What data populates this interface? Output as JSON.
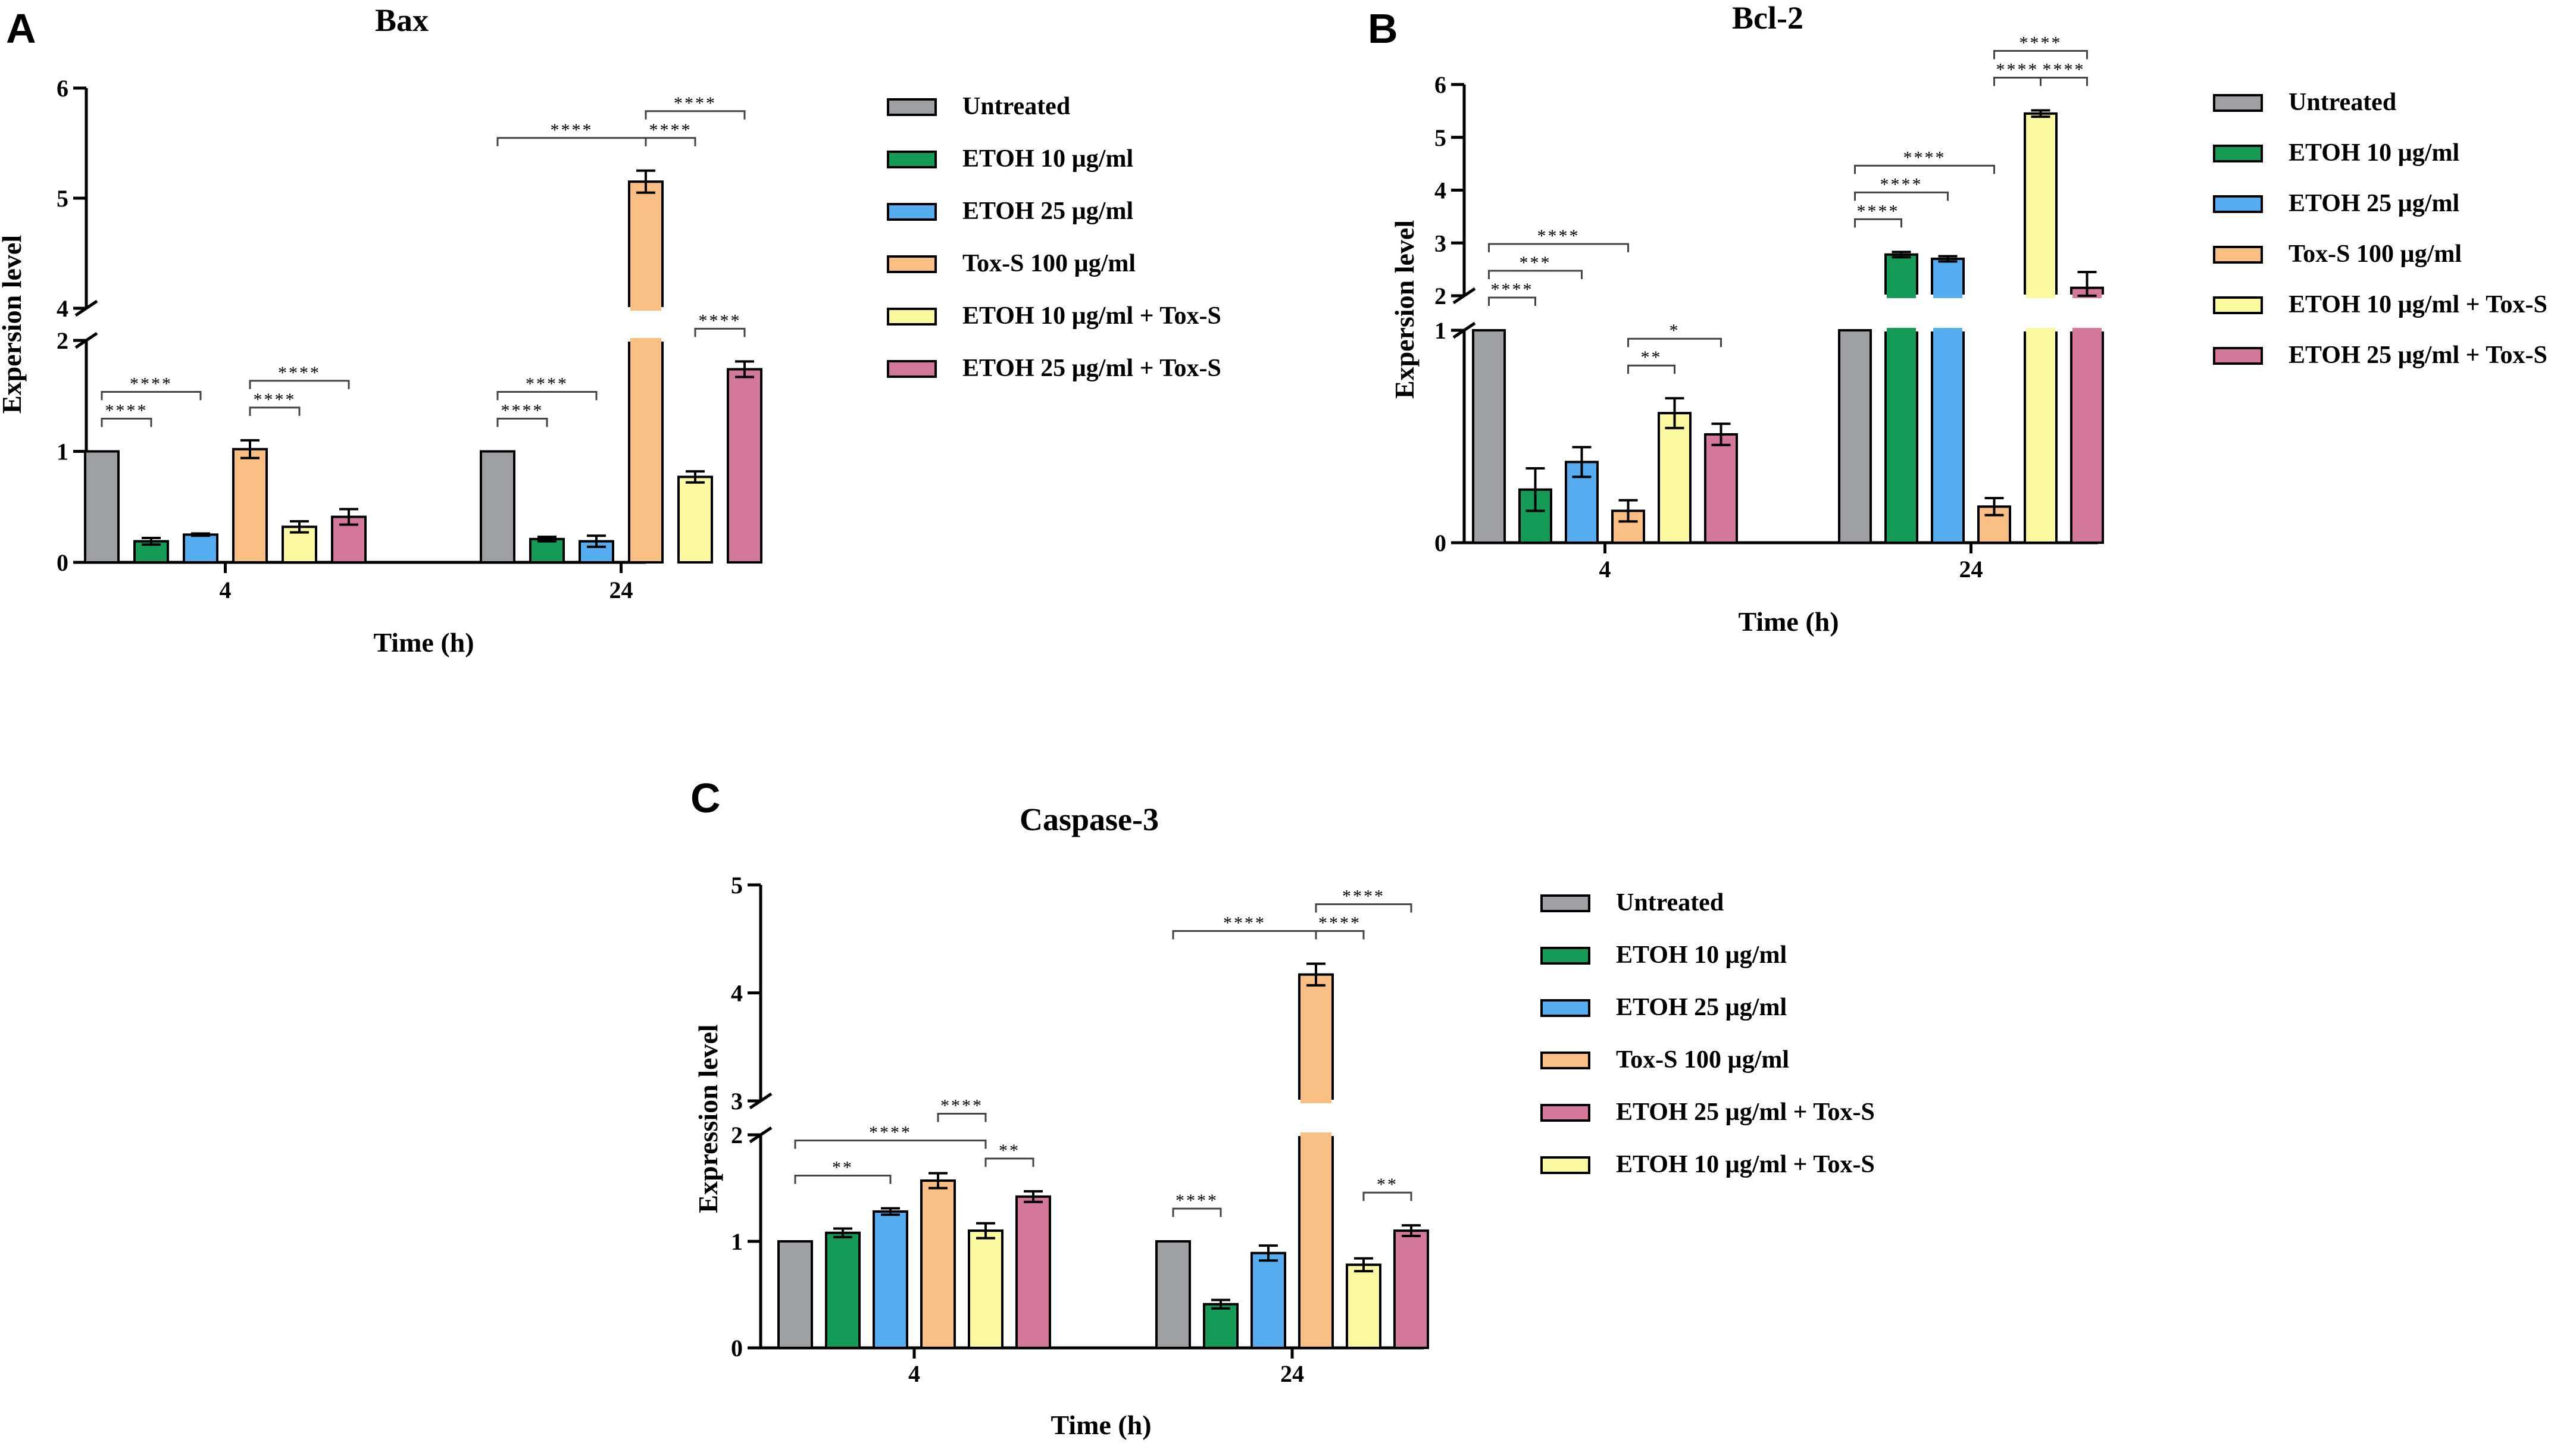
{
  "chart_data": [
    {
      "panel": "A",
      "type": "bar",
      "title": "Bax",
      "xlabel": "Time (h)",
      "ylabel": "Expersion level",
      "categories": [
        "4",
        "24"
      ],
      "y_ticks_lower": [
        "0",
        "1",
        "2"
      ],
      "y_ticks_upper": [
        "4",
        "5",
        "6"
      ],
      "ylim_lower": [
        0,
        2
      ],
      "ylim_upper": [
        4,
        6
      ],
      "series": [
        {
          "name": "Untreated",
          "color": "#9e9fa3",
          "values": [
            1.0,
            1.0
          ],
          "errors": [
            0,
            0
          ]
        },
        {
          "name": "ETOH 10 µg/ml",
          "color": "#149b55",
          "values": [
            0.19,
            0.21
          ],
          "errors": [
            0.03,
            0.02
          ]
        },
        {
          "name": "ETOH 25 µg/ml",
          "color": "#55acee",
          "values": [
            0.25,
            0.19
          ],
          "errors": [
            0.01,
            0.05
          ]
        },
        {
          "name": "Tox-S 100 µg/ml",
          "color": "#f9be82",
          "values": [
            1.02,
            5.15
          ],
          "errors": [
            0.08,
            0.1
          ]
        },
        {
          "name": "ETOH 10 µg/ml + Tox-S",
          "color": "#fbf99f",
          "values": [
            0.32,
            0.77
          ],
          "errors": [
            0.05,
            0.05
          ]
        },
        {
          "name": "ETOH 25 µg/ml + Tox-S",
          "color": "#d3789b",
          "values": [
            0.41,
            1.74
          ],
          "errors": [
            0.07,
            0.07
          ]
        }
      ],
      "significance": [
        {
          "group": 0,
          "from": 0,
          "to": 1,
          "label": "****"
        },
        {
          "group": 0,
          "from": 0,
          "to": 2,
          "label": "****"
        },
        {
          "group": 0,
          "from": 3,
          "to": 4,
          "label": "****"
        },
        {
          "group": 0,
          "from": 3,
          "to": 5,
          "label": "****"
        },
        {
          "group": 1,
          "from": 0,
          "to": 1,
          "label": "****"
        },
        {
          "group": 1,
          "from": 0,
          "to": 2,
          "label": "****"
        },
        {
          "group": 1,
          "from": 4,
          "to": 5,
          "label": "****"
        },
        {
          "group": 1,
          "from": 0,
          "to": 3,
          "label": "****"
        },
        {
          "group": 1,
          "from": 3,
          "to": 4,
          "label": "****"
        },
        {
          "group": 1,
          "from": 3,
          "to": 5,
          "label": "****"
        }
      ]
    },
    {
      "panel": "B",
      "type": "bar",
      "title": "Bcl-2",
      "xlabel": "Time (h)",
      "ylabel": "Expersion level",
      "categories": [
        "4",
        "24"
      ],
      "y_ticks_lower": [
        "0",
        "1"
      ],
      "y_ticks_upper": [
        "2",
        "3",
        "4",
        "5",
        "6"
      ],
      "ylim_lower": [
        0,
        1
      ],
      "ylim_upper": [
        2,
        6
      ],
      "series": [
        {
          "name": "Untreated",
          "color": "#9e9fa3",
          "values": [
            1.0,
            1.0
          ],
          "errors": [
            0,
            0
          ]
        },
        {
          "name": "ETOH 10 µg/ml",
          "color": "#149b55",
          "values": [
            0.25,
            2.78
          ],
          "errors": [
            0.1,
            0.05
          ]
        },
        {
          "name": "ETOH 25 µg/ml",
          "color": "#55acee",
          "values": [
            0.38,
            2.7
          ],
          "errors": [
            0.07,
            0.05
          ]
        },
        {
          "name": "Tox-S 100 µg/ml",
          "color": "#f9be82",
          "values": [
            0.15,
            0.17
          ],
          "errors": [
            0.05,
            0.04
          ]
        },
        {
          "name": "ETOH 10 µg/ml + Tox-S",
          "color": "#fbf99f",
          "values": [
            0.61,
            5.45
          ],
          "errors": [
            0.07,
            0.06
          ]
        },
        {
          "name": "ETOH 25 µg/ml + Tox-S",
          "color": "#d3789b",
          "values": [
            0.51,
            2.15
          ],
          "errors": [
            0.05,
            0.3
          ]
        }
      ],
      "significance": [
        {
          "group": 0,
          "from": 0,
          "to": 1,
          "label": "****"
        },
        {
          "group": 0,
          "from": 0,
          "to": 2,
          "label": "***"
        },
        {
          "group": 0,
          "from": 0,
          "to": 3,
          "label": "****"
        },
        {
          "group": 0,
          "from": 3,
          "to": 4,
          "label": "**"
        },
        {
          "group": 0,
          "from": 3,
          "to": 5,
          "label": "*"
        },
        {
          "group": 1,
          "from": 0,
          "to": 1,
          "label": "****"
        },
        {
          "group": 1,
          "from": 0,
          "to": 2,
          "label": "****"
        },
        {
          "group": 1,
          "from": 0,
          "to": 3,
          "label": "****"
        },
        {
          "group": 1,
          "from": 3,
          "to": 4,
          "label": "****"
        },
        {
          "group": 1,
          "from": 4,
          "to": 5,
          "label": "****"
        },
        {
          "group": 1,
          "from": 3,
          "to": 5,
          "label": "****"
        }
      ]
    },
    {
      "panel": "C",
      "type": "bar",
      "title": "Caspase-3",
      "xlabel": "Time (h)",
      "ylabel": "Expression level",
      "categories": [
        "4",
        "24"
      ],
      "y_ticks_lower": [
        "0",
        "1",
        "2"
      ],
      "y_ticks_upper": [
        "3",
        "4",
        "5"
      ],
      "ylim_lower": [
        0,
        2
      ],
      "ylim_upper": [
        3,
        5
      ],
      "series": [
        {
          "name": "Untreated",
          "color": "#9e9fa3",
          "values": [
            1.0,
            1.0
          ],
          "errors": [
            0,
            0
          ]
        },
        {
          "name": "ETOH 10 µg/ml",
          "color": "#149b55",
          "values": [
            1.08,
            0.41
          ],
          "errors": [
            0.04,
            0.04
          ]
        },
        {
          "name": "ETOH 25 µg/ml",
          "color": "#55acee",
          "values": [
            1.28,
            0.89
          ],
          "errors": [
            0.03,
            0.07
          ]
        },
        {
          "name": "Tox-S 100 µg/ml",
          "color": "#f9be82",
          "values": [
            1.57,
            4.17
          ],
          "errors": [
            0.07,
            0.1
          ]
        },
        {
          "name": "ETOH 10 µg/ml + Tox-S",
          "color": "#fbf99f",
          "values": [
            1.1,
            0.78
          ],
          "errors": [
            0.07,
            0.06
          ]
        },
        {
          "name": "ETOH 25 µg/ml + Tox-S",
          "color": "#d3789b",
          "values": [
            1.42,
            1.1
          ],
          "errors": [
            0.05,
            0.05
          ]
        }
      ],
      "legend_order": [
        0,
        1,
        2,
        3,
        5,
        4
      ],
      "significance": [
        {
          "group": 0,
          "from": 0,
          "to": 2,
          "label": "**"
        },
        {
          "group": 0,
          "from": 0,
          "to": 4,
          "label": "****"
        },
        {
          "group": 0,
          "from": 3,
          "to": 4,
          "label": "****"
        },
        {
          "group": 0,
          "from": 4,
          "to": 5,
          "label": "**"
        },
        {
          "group": 1,
          "from": 0,
          "to": 1,
          "label": "****"
        },
        {
          "group": 1,
          "from": 4,
          "to": 5,
          "label": "**"
        },
        {
          "group": 1,
          "from": 0,
          "to": 3,
          "label": "****"
        },
        {
          "group": 1,
          "from": 3,
          "to": 4,
          "label": "****"
        },
        {
          "group": 1,
          "from": 3,
          "to": 5,
          "label": "****"
        }
      ]
    }
  ]
}
